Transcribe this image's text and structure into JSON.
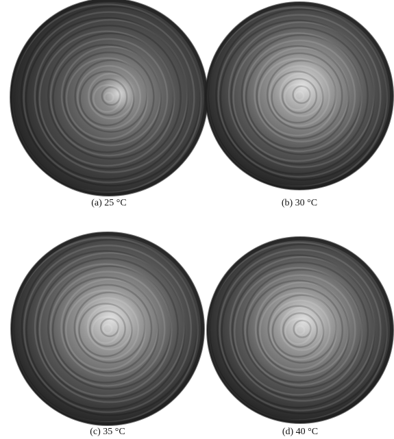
{
  "panels": [
    {
      "caption": "(a) 25 °C"
    },
    {
      "caption": "(b) 30 °C"
    },
    {
      "caption": "(c) 35 °C"
    },
    {
      "caption": "(d) 40 °C"
    }
  ]
}
